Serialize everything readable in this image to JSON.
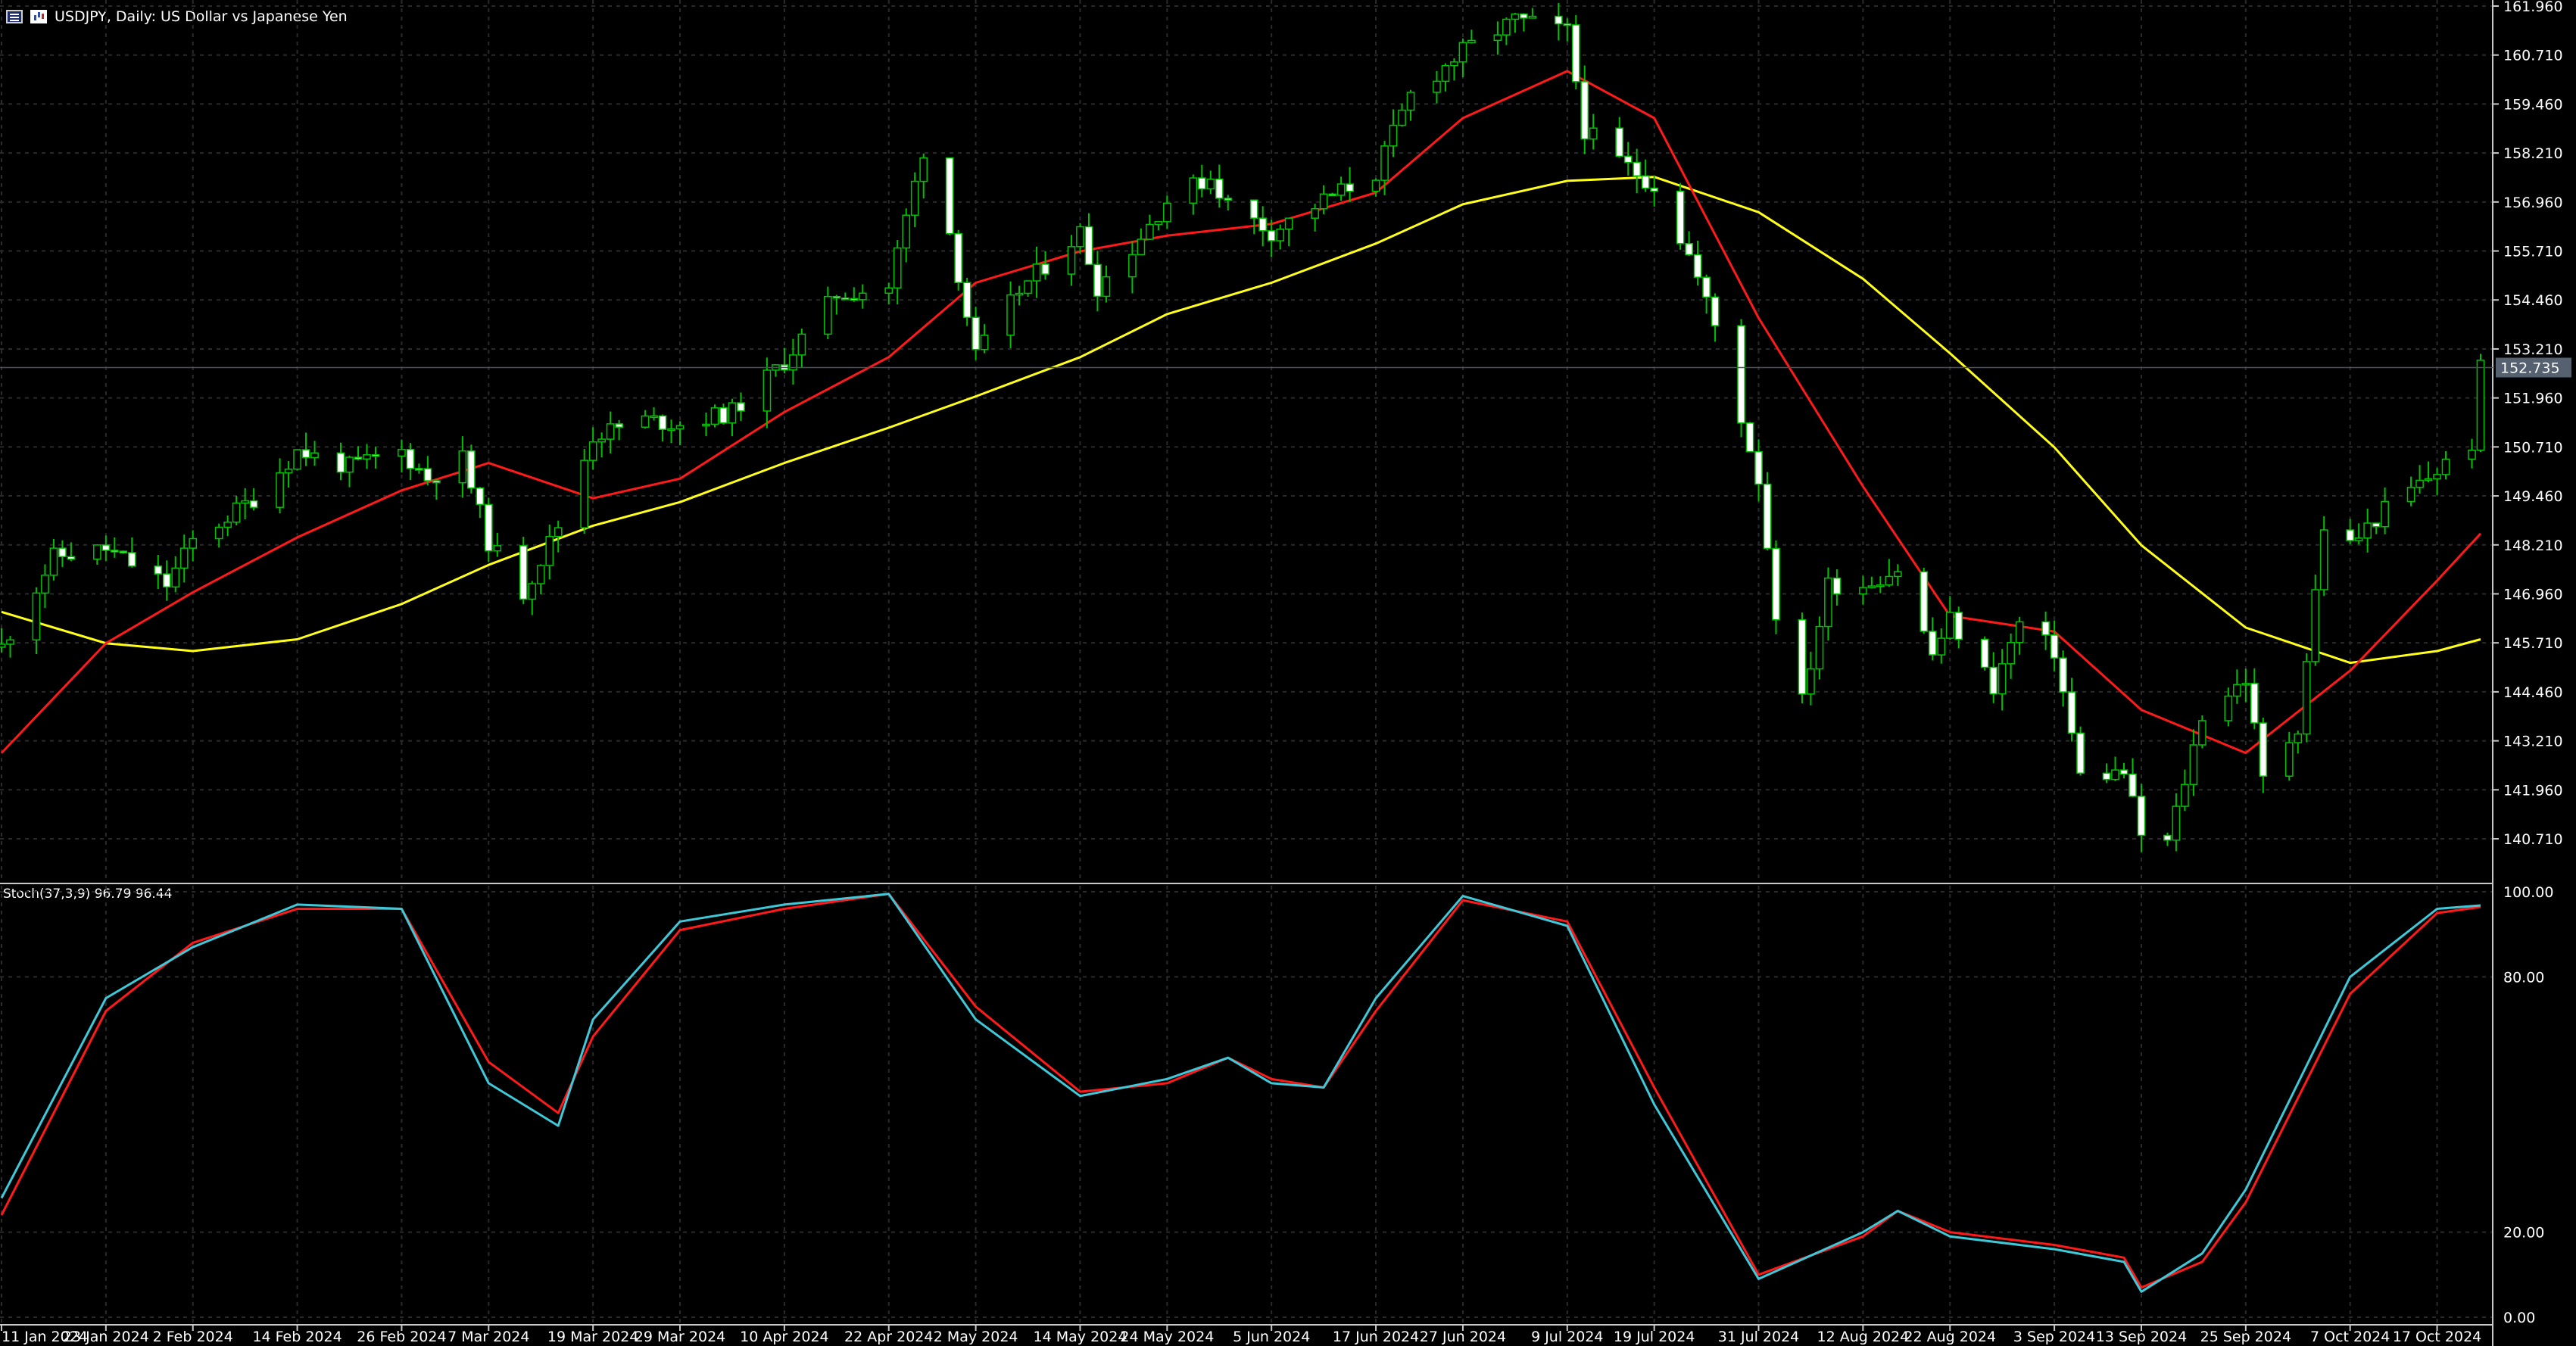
{
  "header": {
    "symbol": "USDJPY",
    "timeframe": "Daily",
    "description": "US Dollar vs Japanese Yen",
    "title_text": "USDJPY, Daily:  US Dollar vs Japanese Yen"
  },
  "price_axis": {
    "labels": [
      "161.960",
      "160.710",
      "159.460",
      "158.210",
      "156.960",
      "155.710",
      "154.460",
      "153.210",
      "151.960",
      "150.710",
      "149.460",
      "148.210",
      "146.960",
      "145.710",
      "144.460",
      "143.210",
      "141.960",
      "140.710"
    ],
    "current_price": "152.735"
  },
  "stoch_panel": {
    "label": "Stoch(37,3,9) 96.79 96.44",
    "axis_labels": [
      "100.00",
      "80.00",
      "20.00",
      "0.00"
    ]
  },
  "date_axis": {
    "labels": [
      "11 Jan 2024",
      "23 Jan 2024",
      "2 Feb 2024",
      "14 Feb 2024",
      "26 Feb 2024",
      "7 Mar 2024",
      "19 Mar 2024",
      "29 Mar 2024",
      "10 Apr 2024",
      "22 Apr 2024",
      "2 May 2024",
      "14 May 2024",
      "24 May 2024",
      "5 Jun 2024",
      "17 Jun 2024",
      "27 Jun 2024",
      "9 Jul 2024",
      "19 Jul 2024",
      "31 Jul 2024",
      "12 Aug 2024",
      "22 Aug 2024",
      "3 Sep 2024",
      "13 Sep 2024",
      "25 Sep 2024",
      "7 Oct 2024",
      "17 Oct 2024"
    ]
  },
  "colors": {
    "background": "#000000",
    "grid": "#2a2a2a",
    "bull_candle": "#00c000",
    "bear_candle": "#ffffff",
    "ma_fast": "#ff1a1a",
    "ma_slow": "#ffff1a",
    "stoch_main": "#3fc8d8",
    "stoch_signal": "#ff1a1a",
    "current_price_tag": "#556070"
  },
  "chart_data": [
    {
      "type": "candlestick",
      "title": "USDJPY, Daily:  US Dollar vs Japanese Yen",
      "ylim": [
        140.0,
        162.2
      ],
      "x_range": [
        "11 Jan 2024",
        "22 Oct 2024"
      ],
      "grid": true,
      "close_path": [
        [
          "11 Jan 2024",
          145.6
        ],
        [
          "17 Jan 2024",
          147.9
        ],
        [
          "23 Jan 2024",
          148.1
        ],
        [
          "30 Jan 2024",
          147.2
        ],
        [
          "2 Feb 2024",
          148.3
        ],
        [
          "9 Feb 2024",
          149.4
        ],
        [
          "14 Feb 2024",
          150.6
        ],
        [
          "20 Feb 2024",
          150.2
        ],
        [
          "26 Feb 2024",
          150.6
        ],
        [
          "29 Feb 2024",
          149.9
        ],
        [
          "4 Mar 2024",
          150.4
        ],
        [
          "7 Mar 2024",
          148.3
        ],
        [
          "11 Mar 2024",
          147.0
        ],
        [
          "15 Mar 2024",
          148.7
        ],
        [
          "19 Mar 2024",
          151.0
        ],
        [
          "25 Mar 2024",
          151.4
        ],
        [
          "29 Mar 2024",
          151.3
        ],
        [
          "4 Apr 2024",
          151.6
        ],
        [
          "10 Apr 2024",
          152.9
        ],
        [
          "16 Apr 2024",
          154.6
        ],
        [
          "22 Apr 2024",
          154.8
        ],
        [
          "26 Apr 2024",
          158.3
        ],
        [
          "29 Apr 2024",
          156.2
        ],
        [
          "2 May 2024",
          153.0
        ],
        [
          "7 May 2024",
          154.7
        ],
        [
          "14 May 2024",
          156.2
        ],
        [
          "16 May 2024",
          154.8
        ],
        [
          "20 May 2024",
          155.8
        ],
        [
          "24 May 2024",
          157.0
        ],
        [
          "29 May 2024",
          157.6
        ],
        [
          "31 May 2024",
          156.9
        ],
        [
          "5 Jun 2024",
          156.2
        ],
        [
          "11 Jun 2024",
          157.0
        ],
        [
          "17 Jun 2024",
          157.7
        ],
        [
          "21 Jun 2024",
          159.7
        ],
        [
          "27 Jun 2024",
          160.8
        ],
        [
          "3 Jul 2024",
          161.6
        ],
        [
          "9 Jul 2024",
          161.3
        ],
        [
          "11 Jul 2024",
          158.8
        ],
        [
          "15 Jul 2024",
          158.0
        ],
        [
          "19 Jul 2024",
          157.4
        ],
        [
          "23 Jul 2024",
          155.6
        ],
        [
          "26 Jul 2024",
          153.8
        ],
        [
          "31 Jul 2024",
          149.9
        ],
        [
          "2 Aug 2024",
          146.5
        ],
        [
          "5 Aug 2024",
          144.2
        ],
        [
          "8 Aug 2024",
          147.2
        ],
        [
          "12 Aug 2024",
          147.2
        ],
        [
          "16 Aug 2024",
          147.6
        ],
        [
          "20 Aug 2024",
          145.4
        ],
        [
          "22 Aug 2024",
          146.3
        ],
        [
          "27 Aug 2024",
          144.6
        ],
        [
          "30 Aug 2024",
          146.2
        ],
        [
          "3 Sep 2024",
          145.5
        ],
        [
          "6 Sep 2024",
          142.3
        ],
        [
          "11 Sep 2024",
          142.4
        ],
        [
          "13 Sep 2024",
          140.8
        ],
        [
          "16 Sep 2024",
          140.6
        ],
        [
          "18 Sep 2024",
          142.2
        ],
        [
          "20 Sep 2024",
          143.9
        ],
        [
          "25 Sep 2024",
          144.8
        ],
        [
          "27 Sep 2024",
          142.2
        ],
        [
          "1 Oct 2024",
          143.6
        ],
        [
          "4 Oct 2024",
          148.7
        ],
        [
          "7 Oct 2024",
          148.2
        ],
        [
          "11 Oct 2024",
          149.1
        ],
        [
          "17 Oct 2024",
          150.1
        ],
        [
          "21 Oct 2024",
          150.8
        ],
        [
          "22 Oct 2024",
          152.7
        ]
      ],
      "ma_fast_path": [
        [
          "11 Jan 2024",
          142.9
        ],
        [
          "23 Jan 2024",
          145.7
        ],
        [
          "2 Feb 2024",
          147.0
        ],
        [
          "14 Feb 2024",
          148.4
        ],
        [
          "26 Feb 2024",
          149.6
        ],
        [
          "7 Mar 2024",
          150.3
        ],
        [
          "19 Mar 2024",
          149.4
        ],
        [
          "29 Mar 2024",
          149.9
        ],
        [
          "10 Apr 2024",
          151.6
        ],
        [
          "22 Apr 2024",
          153.0
        ],
        [
          "2 May 2024",
          154.9
        ],
        [
          "14 May 2024",
          155.7
        ],
        [
          "24 May 2024",
          156.1
        ],
        [
          "5 Jun 2024",
          156.4
        ],
        [
          "17 Jun 2024",
          157.2
        ],
        [
          "27 Jun 2024",
          159.1
        ],
        [
          "9 Jul 2024",
          160.3
        ],
        [
          "19 Jul 2024",
          159.1
        ],
        [
          "31 Jul 2024",
          154.0
        ],
        [
          "12 Aug 2024",
          149.7
        ],
        [
          "22 Aug 2024",
          146.4
        ],
        [
          "3 Sep 2024",
          146.0
        ],
        [
          "13 Sep 2024",
          144.0
        ],
        [
          "25 Sep 2024",
          142.9
        ],
        [
          "7 Oct 2024",
          145.0
        ],
        [
          "17 Oct 2024",
          147.3
        ],
        [
          "22 Oct 2024",
          148.5
        ]
      ],
      "ma_slow_path": [
        [
          "11 Jan 2024",
          146.5
        ],
        [
          "23 Jan 2024",
          145.7
        ],
        [
          "2 Feb 2024",
          145.5
        ],
        [
          "14 Feb 2024",
          145.8
        ],
        [
          "26 Feb 2024",
          146.7
        ],
        [
          "7 Mar 2024",
          147.7
        ],
        [
          "19 Mar 2024",
          148.7
        ],
        [
          "29 Mar 2024",
          149.3
        ],
        [
          "10 Apr 2024",
          150.3
        ],
        [
          "22 Apr 2024",
          151.2
        ],
        [
          "2 May 2024",
          152.0
        ],
        [
          "14 May 2024",
          153.0
        ],
        [
          "24 May 2024",
          154.1
        ],
        [
          "5 Jun 2024",
          154.9
        ],
        [
          "17 Jun 2024",
          155.9
        ],
        [
          "27 Jun 2024",
          156.9
        ],
        [
          "9 Jul 2024",
          157.5
        ],
        [
          "19 Jul 2024",
          157.6
        ],
        [
          "31 Jul 2024",
          156.7
        ],
        [
          "12 Aug 2024",
          155.0
        ],
        [
          "22 Aug 2024",
          153.1
        ],
        [
          "3 Sep 2024",
          150.7
        ],
        [
          "13 Sep 2024",
          148.2
        ],
        [
          "25 Sep 2024",
          146.1
        ],
        [
          "7 Oct 2024",
          145.2
        ],
        [
          "17 Oct 2024",
          145.5
        ],
        [
          "22 Oct 2024",
          145.8
        ]
      ]
    },
    {
      "type": "line",
      "title": "Stoch(37,3,9) 96.79 96.44",
      "ylim": [
        0,
        100
      ],
      "x_range": [
        "11 Jan 2024",
        "22 Oct 2024"
      ],
      "series": [
        {
          "name": "Stoch(37,3,9) main",
          "points": [
            [
              "11 Jan 2024",
              28
            ],
            [
              "23 Jan 2024",
              75
            ],
            [
              "2 Feb 2024",
              87
            ],
            [
              "14 Feb 2024",
              97
            ],
            [
              "26 Feb 2024",
              96
            ],
            [
              "7 Mar 2024",
              55
            ],
            [
              "15 Mar 2024",
              45
            ],
            [
              "19 Mar 2024",
              70
            ],
            [
              "29 Mar 2024",
              93
            ],
            [
              "10 Apr 2024",
              97
            ],
            [
              "22 Apr 2024",
              99.5
            ],
            [
              "2 May 2024",
              70
            ],
            [
              "14 May 2024",
              52
            ],
            [
              "24 May 2024",
              56
            ],
            [
              "31 May 2024",
              61
            ],
            [
              "5 Jun 2024",
              55
            ],
            [
              "11 Jun 2024",
              54
            ],
            [
              "17 Jun 2024",
              75
            ],
            [
              "27 Jun 2024",
              99
            ],
            [
              "9 Jul 2024",
              92
            ],
            [
              "19 Jul 2024",
              50
            ],
            [
              "31 Jul 2024",
              9
            ],
            [
              "12 Aug 2024",
              20
            ],
            [
              "16 Aug 2024",
              25
            ],
            [
              "22 Aug 2024",
              19
            ],
            [
              "3 Sep 2024",
              16
            ],
            [
              "11 Sep 2024",
              13
            ],
            [
              "13 Sep 2024",
              6
            ],
            [
              "20 Sep 2024",
              15
            ],
            [
              "25 Sep 2024",
              30
            ],
            [
              "7 Oct 2024",
              80
            ],
            [
              "17 Oct 2024",
              96
            ],
            [
              "22 Oct 2024",
              96.79
            ]
          ]
        },
        {
          "name": "Stoch(37,3,9) signal",
          "points": [
            [
              "11 Jan 2024",
              24
            ],
            [
              "23 Jan 2024",
              72
            ],
            [
              "2 Feb 2024",
              88
            ],
            [
              "14 Feb 2024",
              96
            ],
            [
              "26 Feb 2024",
              96
            ],
            [
              "7 Mar 2024",
              60
            ],
            [
              "15 Mar 2024",
              48
            ],
            [
              "19 Mar 2024",
              66
            ],
            [
              "29 Mar 2024",
              91
            ],
            [
              "10 Apr 2024",
              96
            ],
            [
              "22 Apr 2024",
              99.5
            ],
            [
              "2 May 2024",
              73
            ],
            [
              "14 May 2024",
              53
            ],
            [
              "24 May 2024",
              55
            ],
            [
              "31 May 2024",
              61
            ],
            [
              "5 Jun 2024",
              56
            ],
            [
              "11 Jun 2024",
              54
            ],
            [
              "17 Jun 2024",
              72
            ],
            [
              "27 Jun 2024",
              98
            ],
            [
              "9 Jul 2024",
              93
            ],
            [
              "19 Jul 2024",
              54
            ],
            [
              "31 Jul 2024",
              10
            ],
            [
              "12 Aug 2024",
              19
            ],
            [
              "16 Aug 2024",
              25
            ],
            [
              "22 Aug 2024",
              20
            ],
            [
              "3 Sep 2024",
              17
            ],
            [
              "11 Sep 2024",
              14
            ],
            [
              "13 Sep 2024",
              7
            ],
            [
              "20 Sep 2024",
              13
            ],
            [
              "25 Sep 2024",
              27
            ],
            [
              "7 Oct 2024",
              76
            ],
            [
              "17 Oct 2024",
              95
            ],
            [
              "22 Oct 2024",
              96.44
            ]
          ]
        }
      ],
      "reference_levels": [
        20,
        80
      ]
    }
  ]
}
